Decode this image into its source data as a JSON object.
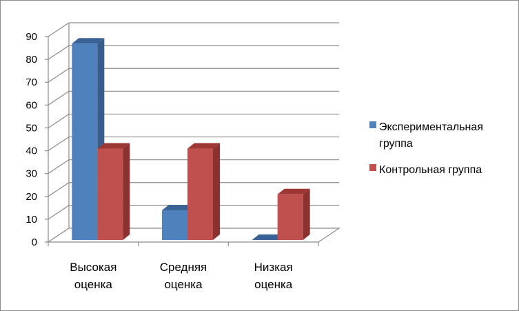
{
  "chart_data": {
    "type": "bar",
    "style": "3d-clustered-column",
    "categories": [
      [
        "Высокая",
        "оценка"
      ],
      [
        "Средняя",
        "оценка"
      ],
      [
        "Низкая",
        "оценка"
      ]
    ],
    "series": [
      {
        "name": [
          "Экспериментальная",
          "группа"
        ],
        "values": [
          86,
          13,
          0
        ],
        "color": "#4f81bd",
        "side_color": "#385d8a",
        "top_color": "#3a6296"
      },
      {
        "name": [
          "Контрольная группа"
        ],
        "values": [
          40,
          40,
          20
        ],
        "color": "#c0504d",
        "side_color": "#8b3230",
        "top_color": "#9c3734"
      }
    ],
    "yticks": [
      "0",
      "10",
      "20",
      "30",
      "40",
      "50",
      "60",
      "70",
      "80",
      "90"
    ],
    "ylim": [
      0,
      90
    ],
    "grid": true,
    "legend_position": "right"
  }
}
